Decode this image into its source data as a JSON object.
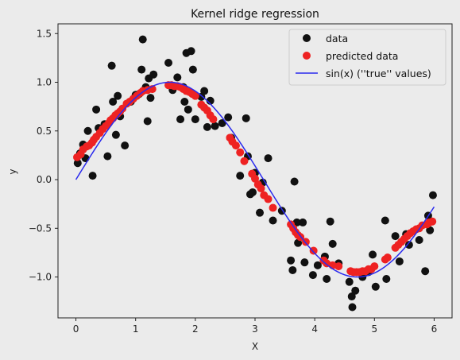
{
  "chart_data": {
    "type": "scatter",
    "title": "Kernel ridge regression",
    "xlabel": "X",
    "ylabel": "y",
    "xlim": [
      -0.3,
      6.3
    ],
    "ylim": [
      -1.42,
      1.6
    ],
    "xticks": [
      0,
      1,
      2,
      3,
      4,
      5,
      6
    ],
    "yticks": [
      -1.0,
      -0.5,
      0.0,
      0.5,
      1.0,
      1.5
    ],
    "xtick_labels": [
      "0",
      "1",
      "2",
      "3",
      "4",
      "5",
      "6"
    ],
    "ytick_labels": [
      "−1.0",
      "−0.5",
      "0.0",
      "0.5",
      "1.0",
      "1.5"
    ],
    "legend_position": "top-right",
    "legend": [
      "data",
      "predicted data",
      "sin(x) (''true'' values)"
    ],
    "colors": {
      "data": "#111111",
      "predicted": "#ee2222",
      "true": "#2a2aee",
      "plot_bg": "#ebebeb"
    },
    "series": [
      {
        "name": "data",
        "marker": "circle",
        "points": [
          [
            0.03,
            0.17
          ],
          [
            0.07,
            0.27
          ],
          [
            0.12,
            0.36
          ],
          [
            0.16,
            0.22
          ],
          [
            0.2,
            0.5
          ],
          [
            0.28,
            0.04
          ],
          [
            0.34,
            0.72
          ],
          [
            0.38,
            0.53
          ],
          [
            0.48,
            0.57
          ],
          [
            0.53,
            0.24
          ],
          [
            0.6,
            1.17
          ],
          [
            0.62,
            0.8
          ],
          [
            0.67,
            0.46
          ],
          [
            0.7,
            0.86
          ],
          [
            0.74,
            0.65
          ],
          [
            0.82,
            0.35
          ],
          [
            0.92,
            0.8
          ],
          [
            1.0,
            0.87
          ],
          [
            1.06,
            0.88
          ],
          [
            1.1,
            1.13
          ],
          [
            1.12,
            1.44
          ],
          [
            1.17,
            0.95
          ],
          [
            1.2,
            0.6
          ],
          [
            1.22,
            1.04
          ],
          [
            1.25,
            0.84
          ],
          [
            1.3,
            1.08
          ],
          [
            1.55,
            1.2
          ],
          [
            1.62,
            0.92
          ],
          [
            1.7,
            1.05
          ],
          [
            1.75,
            0.62
          ],
          [
            1.8,
            0.95
          ],
          [
            1.82,
            0.8
          ],
          [
            1.85,
            1.3
          ],
          [
            1.88,
            0.72
          ],
          [
            1.93,
            1.32
          ],
          [
            1.96,
            1.13
          ],
          [
            2.0,
            0.62
          ],
          [
            2.1,
            0.85
          ],
          [
            2.15,
            0.91
          ],
          [
            2.2,
            0.54
          ],
          [
            2.25,
            0.81
          ],
          [
            2.33,
            0.55
          ],
          [
            2.45,
            0.58
          ],
          [
            2.55,
            0.64
          ],
          [
            2.6,
            0.43
          ],
          [
            2.75,
            0.04
          ],
          [
            2.85,
            0.63
          ],
          [
            2.88,
            0.24
          ],
          [
            2.92,
            -0.15
          ],
          [
            2.96,
            -0.13
          ],
          [
            3.0,
            0.07
          ],
          [
            3.08,
            -0.34
          ],
          [
            3.13,
            -0.03
          ],
          [
            3.22,
            0.22
          ],
          [
            3.3,
            -0.42
          ],
          [
            3.45,
            -0.32
          ],
          [
            3.6,
            -0.83
          ],
          [
            3.63,
            -0.93
          ],
          [
            3.66,
            -0.02
          ],
          [
            3.7,
            -0.44
          ],
          [
            3.72,
            -0.65
          ],
          [
            3.8,
            -0.44
          ],
          [
            3.83,
            -0.85
          ],
          [
            3.97,
            -0.98
          ],
          [
            4.05,
            -0.88
          ],
          [
            4.17,
            -0.79
          ],
          [
            4.2,
            -1.02
          ],
          [
            4.26,
            -0.43
          ],
          [
            4.3,
            -0.66
          ],
          [
            4.4,
            -0.86
          ],
          [
            4.58,
            -1.05
          ],
          [
            4.62,
            -1.2
          ],
          [
            4.63,
            -1.31
          ],
          [
            4.68,
            -1.14
          ],
          [
            4.8,
            -1.0
          ],
          [
            4.9,
            -0.95
          ],
          [
            4.97,
            -0.77
          ],
          [
            5.02,
            -1.1
          ],
          [
            5.18,
            -0.42
          ],
          [
            5.2,
            -1.02
          ],
          [
            5.35,
            -0.58
          ],
          [
            5.42,
            -0.84
          ],
          [
            5.53,
            -0.56
          ],
          [
            5.58,
            -0.67
          ],
          [
            5.75,
            -0.62
          ],
          [
            5.85,
            -0.94
          ],
          [
            5.9,
            -0.37
          ],
          [
            5.93,
            -0.52
          ],
          [
            5.98,
            -0.16
          ]
        ]
      },
      {
        "name": "predicted data",
        "marker": "circle",
        "points": [
          [
            0.02,
            0.23
          ],
          [
            0.08,
            0.26
          ],
          [
            0.12,
            0.31
          ],
          [
            0.18,
            0.34
          ],
          [
            0.22,
            0.35
          ],
          [
            0.27,
            0.38
          ],
          [
            0.3,
            0.41
          ],
          [
            0.34,
            0.44
          ],
          [
            0.4,
            0.48
          ],
          [
            0.45,
            0.52
          ],
          [
            0.5,
            0.55
          ],
          [
            0.55,
            0.58
          ],
          [
            0.58,
            0.61
          ],
          [
            0.62,
            0.63
          ],
          [
            0.66,
            0.66
          ],
          [
            0.7,
            0.68
          ],
          [
            0.74,
            0.7
          ],
          [
            0.78,
            0.73
          ],
          [
            0.85,
            0.78
          ],
          [
            0.9,
            0.8
          ],
          [
            0.96,
            0.83
          ],
          [
            1.02,
            0.86
          ],
          [
            1.08,
            0.89
          ],
          [
            1.12,
            0.91
          ],
          [
            1.2,
            0.92
          ],
          [
            1.28,
            0.93
          ],
          [
            1.55,
            0.97
          ],
          [
            1.6,
            0.97
          ],
          [
            1.65,
            0.96
          ],
          [
            1.7,
            0.96
          ],
          [
            1.75,
            0.95
          ],
          [
            1.8,
            0.93
          ],
          [
            1.85,
            0.91
          ],
          [
            1.9,
            0.9
          ],
          [
            1.95,
            0.88
          ],
          [
            2.0,
            0.86
          ],
          [
            2.1,
            0.77
          ],
          [
            2.15,
            0.74
          ],
          [
            2.2,
            0.71
          ],
          [
            2.25,
            0.66
          ],
          [
            2.3,
            0.62
          ],
          [
            2.58,
            0.43
          ],
          [
            2.62,
            0.39
          ],
          [
            2.68,
            0.35
          ],
          [
            2.75,
            0.28
          ],
          [
            2.82,
            0.19
          ],
          [
            2.95,
            0.06
          ],
          [
            3.0,
            0.01
          ],
          [
            3.05,
            -0.05
          ],
          [
            3.1,
            -0.09
          ],
          [
            3.15,
            -0.16
          ],
          [
            3.22,
            -0.2
          ],
          [
            3.3,
            -0.29
          ],
          [
            3.6,
            -0.46
          ],
          [
            3.64,
            -0.5
          ],
          [
            3.68,
            -0.54
          ],
          [
            3.72,
            -0.57
          ],
          [
            3.76,
            -0.59
          ],
          [
            3.85,
            -0.64
          ],
          [
            3.98,
            -0.73
          ],
          [
            4.15,
            -0.83
          ],
          [
            4.2,
            -0.86
          ],
          [
            4.3,
            -0.88
          ],
          [
            4.4,
            -0.89
          ],
          [
            4.6,
            -0.94
          ],
          [
            4.65,
            -0.95
          ],
          [
            4.7,
            -0.95
          ],
          [
            4.75,
            -0.95
          ],
          [
            4.8,
            -0.94
          ],
          [
            4.85,
            -0.94
          ],
          [
            4.9,
            -0.92
          ],
          [
            4.95,
            -0.92
          ],
          [
            5.0,
            -0.89
          ],
          [
            5.18,
            -0.82
          ],
          [
            5.22,
            -0.8
          ],
          [
            5.35,
            -0.7
          ],
          [
            5.4,
            -0.67
          ],
          [
            5.45,
            -0.64
          ],
          [
            5.5,
            -0.61
          ],
          [
            5.55,
            -0.58
          ],
          [
            5.6,
            -0.55
          ],
          [
            5.65,
            -0.53
          ],
          [
            5.7,
            -0.51
          ],
          [
            5.75,
            -0.5
          ],
          [
            5.8,
            -0.47
          ],
          [
            5.88,
            -0.46
          ],
          [
            5.92,
            -0.44
          ],
          [
            5.97,
            -0.43
          ]
        ]
      },
      {
        "name": "sin(x) (''true'' values)",
        "type": "line",
        "function": "sin",
        "x_range": [
          0,
          6
        ]
      }
    ]
  }
}
